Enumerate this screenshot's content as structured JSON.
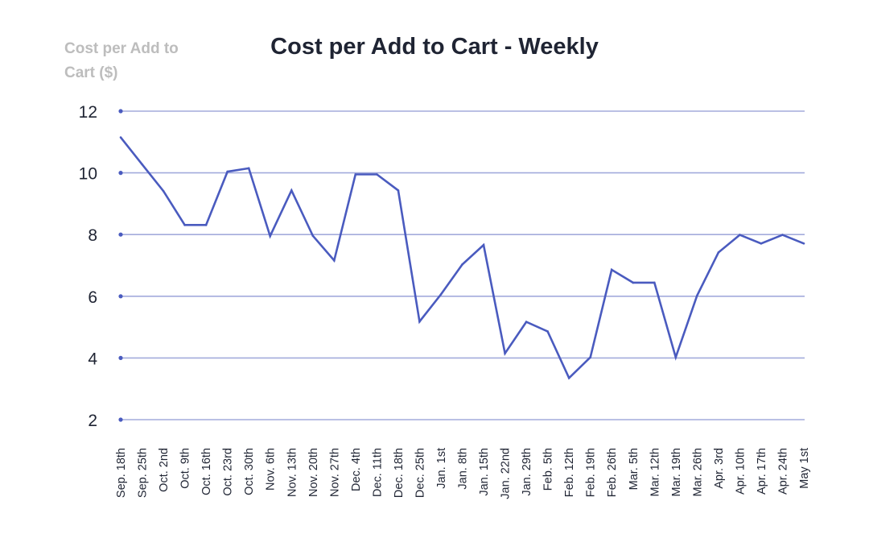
{
  "chart_data": {
    "type": "line",
    "title": "Cost per Add to Cart - Weekly",
    "ylabel": "Cost per Add to Cart ($)",
    "xlabel": "",
    "ylim": [
      2,
      12
    ],
    "yticks": [
      2,
      4,
      6,
      8,
      10,
      12
    ],
    "grid": true,
    "colors": {
      "line": "#4a5bbf",
      "grid": "#a3abdc",
      "title": "#1f2433",
      "ylabel": "#bdbdbd"
    },
    "categories": [
      "Sep. 18th",
      "Sep. 25th",
      "Oct. 2nd",
      "Oct. 9th",
      "Oct. 16th",
      "Oct. 23rd",
      "Oct. 30th",
      "Nov. 6th",
      "Nov. 13th",
      "Nov. 20th",
      "Nov. 27th",
      "Dec. 4th",
      "Dec. 11th",
      "Dec. 18th",
      "Dec. 25th",
      "Jan. 1st",
      "Jan. 8th",
      "Jan. 15th",
      "Jan. 22nd",
      "Jan. 29th",
      "Feb. 5th",
      "Feb. 12th",
      "Feb. 19th",
      "Feb. 26th",
      "Mar. 5th",
      "Mar. 12th",
      "Mar. 19th",
      "Mar. 26th",
      "Apr. 3rd",
      "Apr. 10th",
      "Apr. 17th",
      "Apr. 24th",
      "May 1st"
    ],
    "values": [
      11.15,
      10.28,
      9.41,
      8.31,
      8.31,
      10.04,
      10.15,
      7.95,
      9.43,
      7.96,
      7.16,
      9.95,
      9.95,
      9.43,
      5.18,
      6.06,
      7.03,
      7.66,
      4.15,
      5.17,
      4.86,
      3.35,
      4.02,
      6.86,
      6.44,
      6.44,
      4.02,
      6.02,
      7.42,
      7.99,
      7.71,
      7.99,
      7.71
    ]
  }
}
